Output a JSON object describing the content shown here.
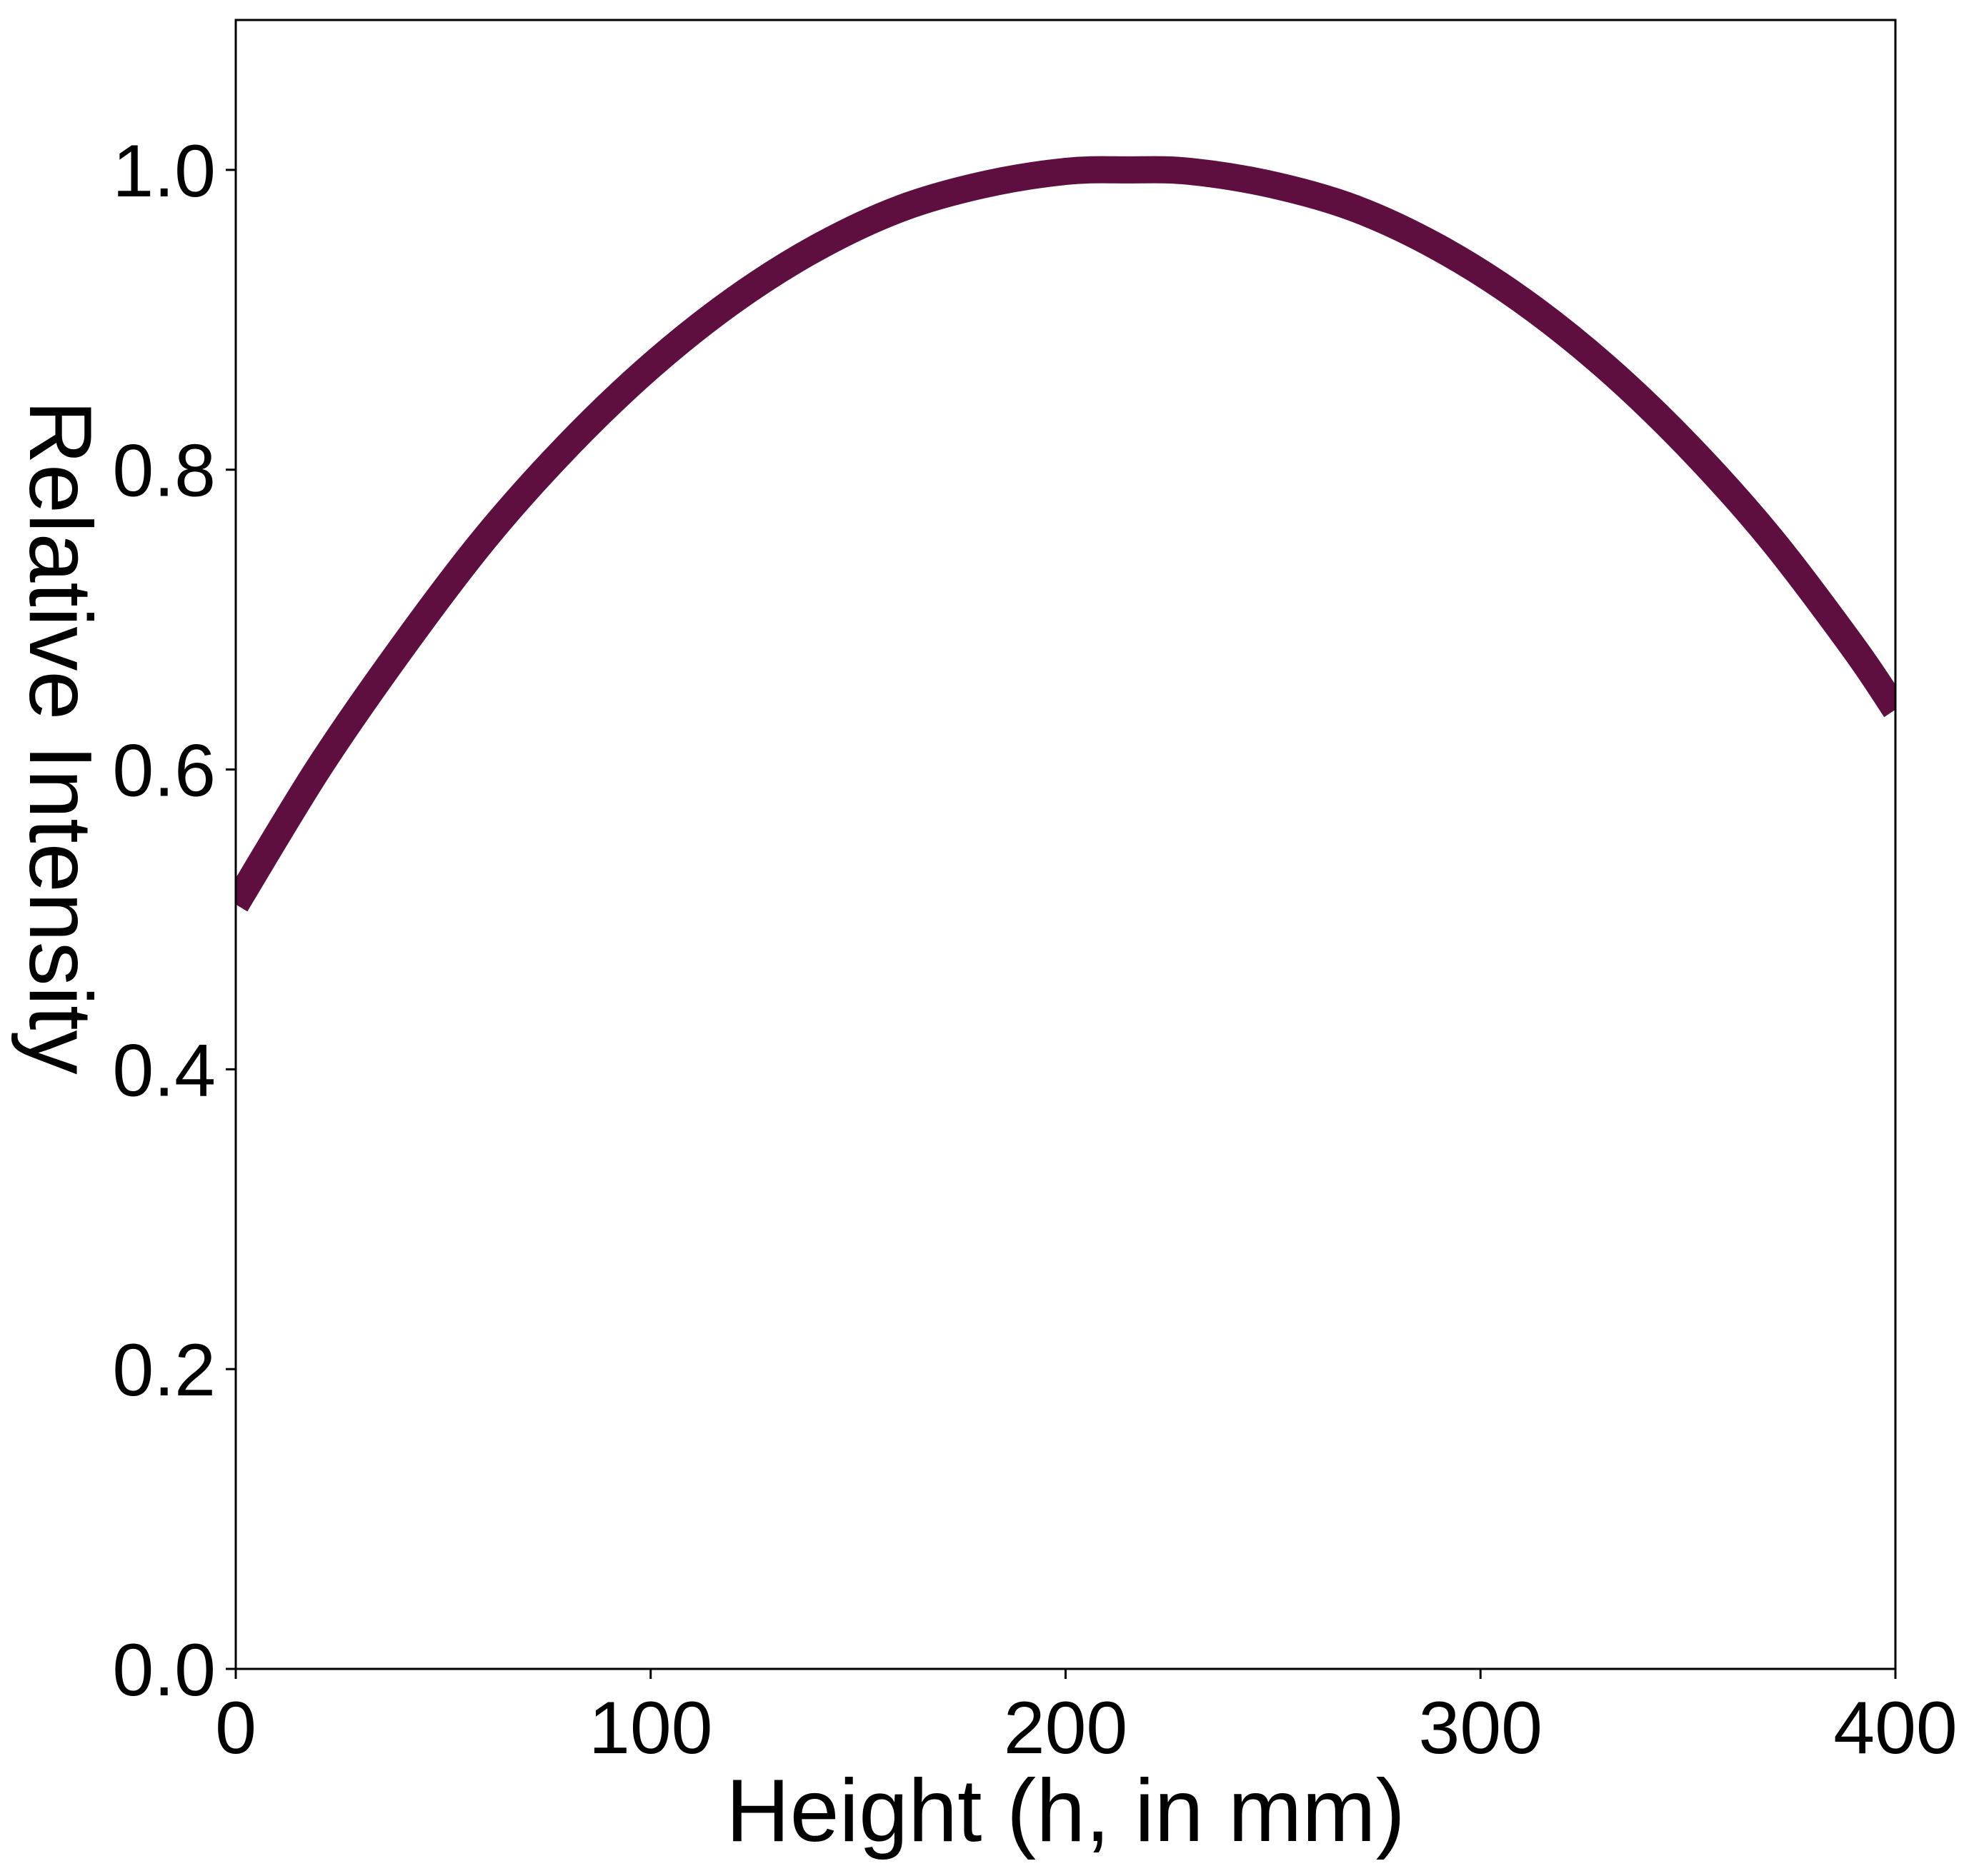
{
  "chart_data": {
    "type": "line",
    "title": "",
    "xlabel": "Height (h, in mm)",
    "ylabel": "Relative Intensity",
    "xlim": [
      0,
      400
    ],
    "ylim": [
      0,
      1.1
    ],
    "x_ticks": [
      0,
      100,
      200,
      300,
      400
    ],
    "x_tick_labels": [
      "0",
      "100",
      "200",
      "300",
      "400"
    ],
    "y_ticks": [
      0.0,
      0.2,
      0.4,
      0.6,
      0.8,
      1.0
    ],
    "y_tick_labels": [
      "0.0",
      "0.2",
      "0.4",
      "0.6",
      "0.8",
      "1.0"
    ],
    "grid": false,
    "legend": "none",
    "series": [
      {
        "color": "#5e0f3f",
        "x": [
          0,
          20,
          40,
          60,
          80,
          100,
          120,
          140,
          160,
          180,
          200,
          215,
          230,
          250,
          270,
          290,
          310,
          330,
          350,
          370,
          390,
          400
        ],
        "y": [
          0.51,
          0.601,
          0.681,
          0.754,
          0.816,
          0.869,
          0.913,
          0.948,
          0.974,
          0.99,
          0.999,
          1.0,
          0.999,
          0.99,
          0.974,
          0.948,
          0.913,
          0.869,
          0.816,
          0.754,
          0.681,
          0.64
        ]
      }
    ]
  }
}
